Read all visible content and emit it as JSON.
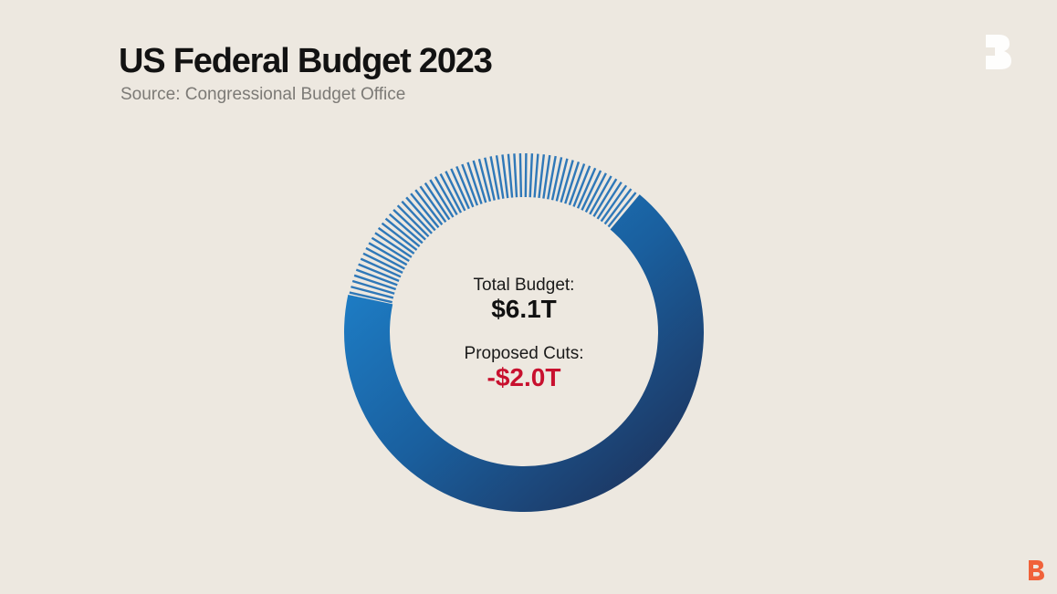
{
  "header": {
    "title": "US Federal Budget 2023",
    "subtitle": "Source: Congressional Budget Office"
  },
  "center": {
    "total_label": "Total Budget:",
    "total_value": "$6.1T",
    "cuts_label": "Proposed Cuts:",
    "cuts_value": "-$2.0T"
  },
  "colors": {
    "background": "#ede8e0",
    "solid_start": "#1f8ad6",
    "solid_end": "#1e2a4f",
    "stripes": "#2f78b8",
    "cuts_value": "#c8102e"
  },
  "icons": {
    "brand": "bloomberg-b-logo-icon",
    "corner": "bloomberg-originals-logo-icon"
  },
  "chart_data": {
    "type": "pie",
    "style": "donut",
    "total": 6.1,
    "unit": "$T",
    "slices": [
      {
        "value": 4.1,
        "pattern": "solid"
      },
      {
        "value": 2.0,
        "pattern": "striped"
      }
    ]
  }
}
